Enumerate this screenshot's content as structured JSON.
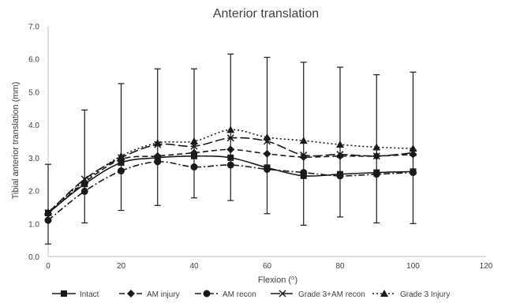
{
  "chart_data": {
    "type": "line",
    "title": "Anterior translation",
    "xlabel": "Flexion (⁰)",
    "ylabel": "Tibial anterior translation (mm)",
    "xlim": [
      0,
      120
    ],
    "ylim": [
      0,
      7
    ],
    "x_ticks": [
      "0",
      "20",
      "40",
      "60",
      "80",
      "100",
      "120"
    ],
    "y_ticks": [
      "0.0",
      "1.0",
      "2.0",
      "3.0",
      "4.0",
      "5.0",
      "6.0",
      "7.0"
    ],
    "grid": false,
    "legend_position": "bottom",
    "x": [
      0,
      10,
      20,
      30,
      40,
      50,
      60,
      70,
      80,
      90,
      100
    ],
    "series": [
      {
        "name": "Intact",
        "marker": "square",
        "dash": "solid",
        "values": [
          1.32,
          2.2,
          2.85,
          3.0,
          3.05,
          3.0,
          2.7,
          2.45,
          2.5,
          2.55,
          2.58
        ]
      },
      {
        "name": "AM injury",
        "marker": "diamond",
        "dash": "dash",
        "values": [
          1.3,
          2.25,
          2.95,
          3.05,
          3.15,
          3.25,
          3.12,
          3.02,
          3.05,
          3.05,
          3.1
        ]
      },
      {
        "name": "AM recon",
        "marker": "circle",
        "dash": "dashdot",
        "values": [
          1.1,
          1.98,
          2.6,
          2.88,
          2.72,
          2.78,
          2.65,
          2.55,
          2.45,
          2.5,
          2.55
        ]
      },
      {
        "name": "Grade 3+AM recon",
        "marker": "x",
        "dash": "longdash",
        "values": [
          1.33,
          2.35,
          3.0,
          3.4,
          3.35,
          3.6,
          3.5,
          3.08,
          3.1,
          3.05,
          3.15
        ]
      },
      {
        "name": "Grade 3 Injury",
        "marker": "triangle",
        "dash": "dot",
        "values": [
          1.35,
          2.3,
          3.05,
          3.45,
          3.5,
          3.85,
          3.62,
          3.52,
          3.4,
          3.32,
          3.28
        ]
      }
    ],
    "error_bars": {
      "series": "Grade 3 Injury",
      "upper": [
        2.8,
        4.45,
        5.25,
        5.7,
        5.7,
        6.15,
        6.05,
        5.9,
        5.75,
        5.52,
        5.6
      ],
      "lower": [
        0.38,
        1.02,
        1.4,
        1.55,
        1.78,
        1.7,
        1.3,
        0.95,
        1.2,
        1.02,
        1.0
      ]
    }
  }
}
